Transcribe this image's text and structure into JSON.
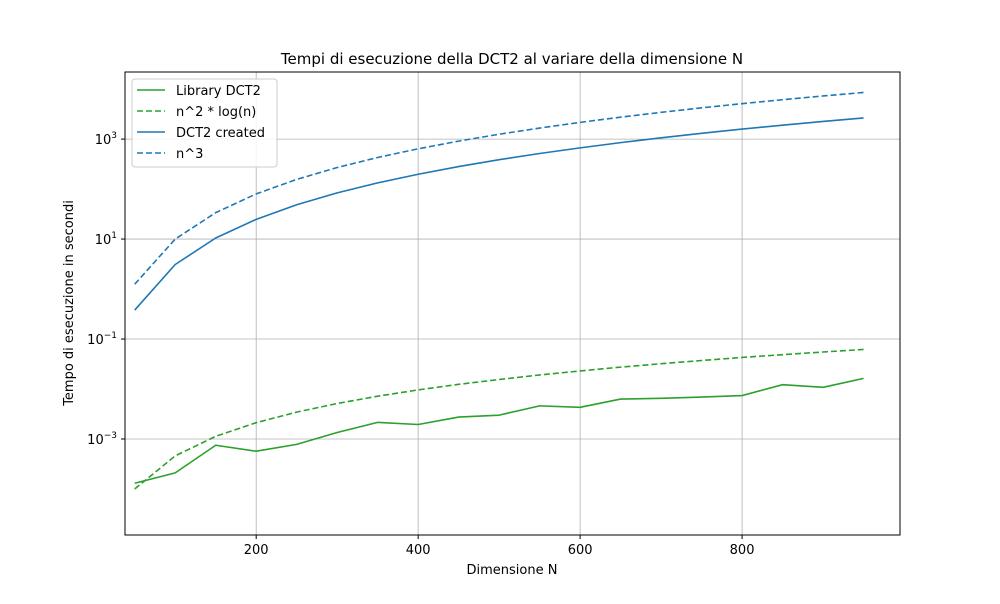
{
  "chart_data": {
    "type": "line",
    "title": "Tempi di esecuzione della DCT2 al variare della dimensione N",
    "xlabel": "Dimensione N",
    "ylabel": "Tempo di esecuzione in secondi",
    "xlim": [
      38,
      995
    ],
    "ylim": [
      1.2e-05,
      22000
    ],
    "yscale": "log",
    "grid": true,
    "legend_position": "top-left",
    "x_ticks": [
      200,
      400,
      600,
      800
    ],
    "x_tick_labels": [
      "200",
      "400",
      "600",
      "800"
    ],
    "y_ticks": [
      0.001,
      0.1,
      10,
      1000
    ],
    "y_tick_labels": [
      {
        "base": "10",
        "exp": "−3"
      },
      {
        "base": "10",
        "exp": "−1"
      },
      {
        "base": "10",
        "exp": "1"
      },
      {
        "base": "10",
        "exp": "3"
      }
    ],
    "x": [
      50,
      100,
      150,
      200,
      250,
      300,
      350,
      400,
      450,
      500,
      550,
      600,
      650,
      700,
      750,
      800,
      850,
      900,
      950
    ],
    "series": [
      {
        "name": "Library DCT2",
        "color": "#2ca02c",
        "dash": "solid",
        "values": [
          0.00013,
          0.00021,
          0.00075,
          0.00057,
          0.00078,
          0.00135,
          0.00215,
          0.00195,
          0.00275,
          0.003,
          0.0046,
          0.0043,
          0.0063,
          0.0065,
          0.0069,
          0.0074,
          0.0122,
          0.0108,
          0.0163
        ]
      },
      {
        "name": "n^2 * log(n)",
        "color": "#2ca02c",
        "dash": "dashed",
        "values": [
          0.0001,
          0.00046,
          0.00113,
          0.00212,
          0.00345,
          0.00513,
          0.00718,
          0.0096,
          0.0124,
          0.0155,
          0.0191,
          0.023,
          0.0274,
          0.0321,
          0.0372,
          0.0428,
          0.0487,
          0.055,
          0.0619
        ]
      },
      {
        "name": "DCT2 created",
        "color": "#1f77b4",
        "dash": "solid",
        "values": [
          0.38,
          3.1,
          10.5,
          24.8,
          48.5,
          84,
          133,
          198,
          282,
          387,
          515,
          668,
          850,
          1060,
          1305,
          1585,
          1900,
          2255,
          2650
        ]
      },
      {
        "name": "n^3",
        "color": "#1f77b4",
        "dash": "dashed",
        "values": [
          1.25,
          10,
          33.75,
          80,
          156.25,
          270,
          428.75,
          640,
          911.25,
          1250,
          1663.75,
          2160,
          2746.25,
          3430,
          4218.75,
          5120,
          6141.25,
          7290,
          8573.75
        ]
      }
    ]
  }
}
